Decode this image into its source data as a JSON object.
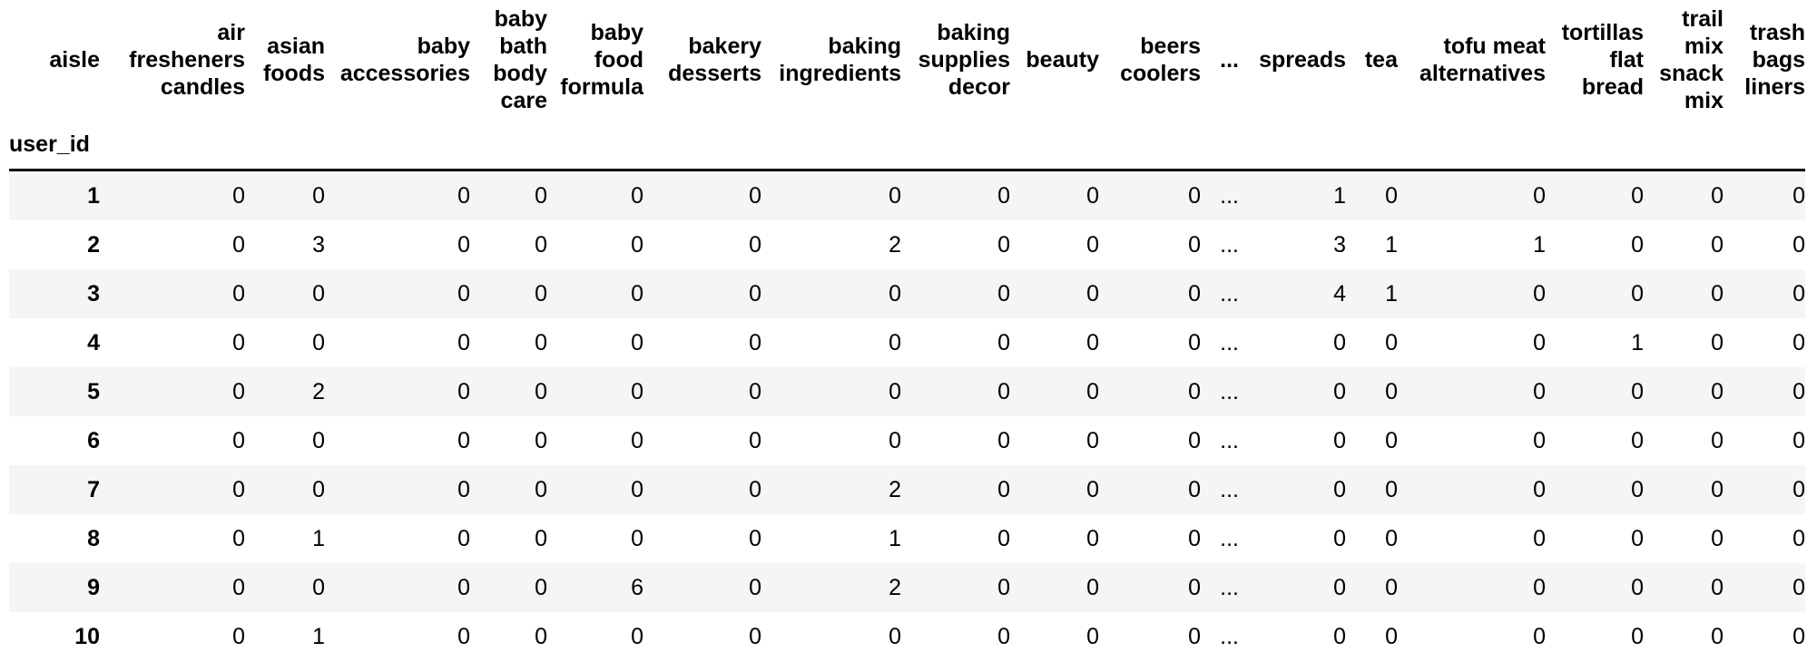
{
  "table": {
    "columns_axis_name": "aisle",
    "index_name": "user_id",
    "columns": [
      "air fresheners candles",
      "asian foods",
      "baby accessories",
      "baby bath body care",
      "baby food formula",
      "bakery desserts",
      "baking ingredients",
      "baking supplies decor",
      "beauty",
      "beers coolers",
      "...",
      "spreads",
      "tea",
      "tofu meat alternatives",
      "tortillas flat bread",
      "trail mix snack mix",
      "trash bags liners"
    ],
    "rows": [
      {
        "index": "1",
        "values": [
          "0",
          "0",
          "0",
          "0",
          "0",
          "0",
          "0",
          "0",
          "0",
          "0",
          "...",
          "1",
          "0",
          "0",
          "0",
          "0",
          "0"
        ]
      },
      {
        "index": "2",
        "values": [
          "0",
          "3",
          "0",
          "0",
          "0",
          "0",
          "2",
          "0",
          "0",
          "0",
          "...",
          "3",
          "1",
          "1",
          "0",
          "0",
          "0"
        ]
      },
      {
        "index": "3",
        "values": [
          "0",
          "0",
          "0",
          "0",
          "0",
          "0",
          "0",
          "0",
          "0",
          "0",
          "...",
          "4",
          "1",
          "0",
          "0",
          "0",
          "0"
        ]
      },
      {
        "index": "4",
        "values": [
          "0",
          "0",
          "0",
          "0",
          "0",
          "0",
          "0",
          "0",
          "0",
          "0",
          "...",
          "0",
          "0",
          "0",
          "1",
          "0",
          "0"
        ]
      },
      {
        "index": "5",
        "values": [
          "0",
          "2",
          "0",
          "0",
          "0",
          "0",
          "0",
          "0",
          "0",
          "0",
          "...",
          "0",
          "0",
          "0",
          "0",
          "0",
          "0"
        ]
      },
      {
        "index": "6",
        "values": [
          "0",
          "0",
          "0",
          "0",
          "0",
          "0",
          "0",
          "0",
          "0",
          "0",
          "...",
          "0",
          "0",
          "0",
          "0",
          "0",
          "0"
        ]
      },
      {
        "index": "7",
        "values": [
          "0",
          "0",
          "0",
          "0",
          "0",
          "0",
          "2",
          "0",
          "0",
          "0",
          "...",
          "0",
          "0",
          "0",
          "0",
          "0",
          "0"
        ]
      },
      {
        "index": "8",
        "values": [
          "0",
          "1",
          "0",
          "0",
          "0",
          "0",
          "1",
          "0",
          "0",
          "0",
          "...",
          "0",
          "0",
          "0",
          "0",
          "0",
          "0"
        ]
      },
      {
        "index": "9",
        "values": [
          "0",
          "0",
          "0",
          "0",
          "6",
          "0",
          "2",
          "0",
          "0",
          "0",
          "...",
          "0",
          "0",
          "0",
          "0",
          "0",
          "0"
        ]
      },
      {
        "index": "10",
        "values": [
          "0",
          "1",
          "0",
          "0",
          "0",
          "0",
          "0",
          "0",
          "0",
          "0",
          "...",
          "0",
          "0",
          "0",
          "0",
          "0",
          "0"
        ]
      }
    ],
    "colors": {
      "stripe": "#f5f5f5",
      "background": "#ffffff",
      "text": "#000000",
      "header_rule": "#000000"
    }
  }
}
